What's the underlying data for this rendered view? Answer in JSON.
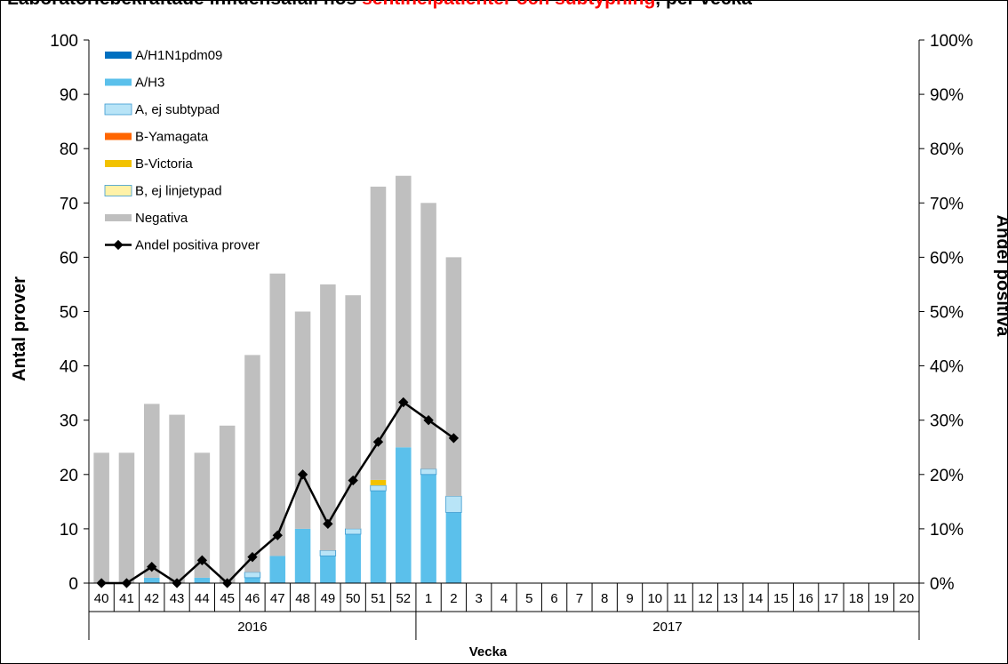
{
  "title_parts": [
    {
      "text": "Laboratoriebekräftade influensafall hos ",
      "style": "black"
    },
    {
      "text": "sentinelpatienter och ",
      "style": "red"
    },
    {
      "text": "subtypning",
      "style": "red"
    },
    {
      "text": ", per vecka",
      "style": "black"
    }
  ],
  "chart_data": {
    "type": "bar",
    "stacked": true,
    "categories": [
      "40",
      "41",
      "42",
      "43",
      "44",
      "45",
      "46",
      "47",
      "48",
      "49",
      "50",
      "51",
      "52",
      "1",
      "2",
      "3",
      "4",
      "5",
      "6",
      "7",
      "8",
      "9",
      "10",
      "11",
      "12",
      "13",
      "14",
      "15",
      "16",
      "17",
      "18",
      "19",
      "20"
    ],
    "year_groups": [
      {
        "label": "2016",
        "from": 0,
        "to": 12
      },
      {
        "label": "2017",
        "from": 13,
        "to": 32
      }
    ],
    "xlabel": "Vecka",
    "ylabel": "Antal prover",
    "ylabel_right": "Andel positiva",
    "ylim": [
      0,
      100
    ],
    "ylim_right": [
      0,
      100
    ],
    "y_ticks": [
      "0",
      "10",
      "20",
      "30",
      "40",
      "50",
      "60",
      "70",
      "80",
      "90",
      "100"
    ],
    "y_ticks_right": [
      "0%",
      "10%",
      "20%",
      "30%",
      "40%",
      "50%",
      "60%",
      "70%",
      "80%",
      "90%",
      "100%"
    ],
    "series": [
      {
        "name": "A/H1N1pdm09",
        "color": "#0070c0",
        "values": [
          0,
          0,
          0,
          0,
          0,
          0,
          0,
          0,
          0,
          0,
          0,
          0,
          0,
          0,
          0,
          null,
          null,
          null,
          null,
          null,
          null,
          null,
          null,
          null,
          null,
          null,
          null,
          null,
          null,
          null,
          null,
          null,
          null
        ]
      },
      {
        "name": "A/H3",
        "color": "#5bc0eb",
        "values": [
          0,
          0,
          1,
          0,
          1,
          0,
          1,
          5,
          10,
          5,
          9,
          17,
          25,
          20,
          13,
          null,
          null,
          null,
          null,
          null,
          null,
          null,
          null,
          null,
          null,
          null,
          null,
          null,
          null,
          null,
          null,
          null,
          null
        ]
      },
      {
        "name": "A, ej subtypad",
        "color": "#b8e4f7",
        "values": [
          0,
          0,
          0,
          0,
          0,
          0,
          1,
          0,
          0,
          1,
          1,
          1,
          0,
          1,
          3,
          null,
          null,
          null,
          null,
          null,
          null,
          null,
          null,
          null,
          null,
          null,
          null,
          null,
          null,
          null,
          null,
          null,
          null
        ]
      },
      {
        "name": "B-Yamagata",
        "color": "#ff6600",
        "values": [
          0,
          0,
          0,
          0,
          0,
          0,
          0,
          0,
          0,
          0,
          0,
          0,
          0,
          0,
          0,
          null,
          null,
          null,
          null,
          null,
          null,
          null,
          null,
          null,
          null,
          null,
          null,
          null,
          null,
          null,
          null,
          null,
          null
        ]
      },
      {
        "name": "B-Victoria",
        "color": "#f2c200",
        "values": [
          0,
          0,
          0,
          0,
          0,
          0,
          0,
          0,
          0,
          0,
          0,
          1,
          0,
          0,
          0,
          null,
          null,
          null,
          null,
          null,
          null,
          null,
          null,
          null,
          null,
          null,
          null,
          null,
          null,
          null,
          null,
          null,
          null
        ]
      },
      {
        "name": "B, ej linjetypad",
        "color": "#fff2a8",
        "values": [
          0,
          0,
          0,
          0,
          0,
          0,
          0,
          0,
          0,
          0,
          0,
          0,
          0,
          0,
          0,
          null,
          null,
          null,
          null,
          null,
          null,
          null,
          null,
          null,
          null,
          null,
          null,
          null,
          null,
          null,
          null,
          null,
          null
        ]
      },
      {
        "name": "Negativa",
        "color": "#bfbfbf",
        "values": [
          24,
          24,
          32,
          31,
          23,
          29,
          40,
          52,
          40,
          49,
          43,
          54,
          50,
          49,
          44,
          null,
          null,
          null,
          null,
          null,
          null,
          null,
          null,
          null,
          null,
          null,
          null,
          null,
          null,
          null,
          null,
          null,
          null
        ]
      }
    ],
    "line_series": {
      "name": "Andel positiva prover",
      "color": "#000000",
      "axis": "right",
      "values": [
        0,
        0,
        3,
        0,
        4.2,
        0,
        4.8,
        8.8,
        20,
        10.9,
        18.9,
        26,
        33.3,
        30,
        26.7,
        null,
        null,
        null,
        null,
        null,
        null,
        null,
        null,
        null,
        null,
        null,
        null,
        null,
        null,
        null,
        null,
        null,
        null
      ]
    },
    "legend_position": "top-left",
    "grid": false
  }
}
